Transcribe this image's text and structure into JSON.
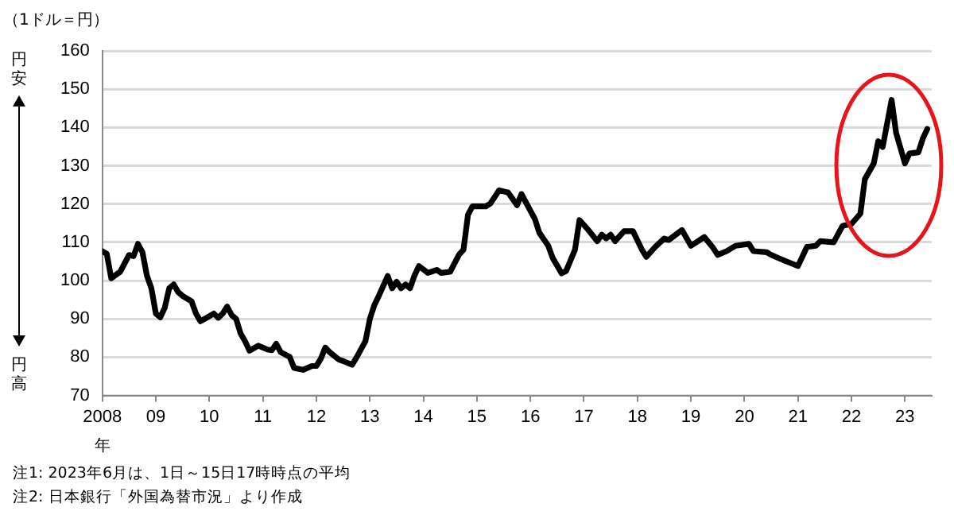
{
  "chart_data": {
    "type": "line",
    "ylabel": "（1ドル＝円）",
    "xlabel": "年",
    "annotations": [
      "円安",
      "円高",
      "注1: 2023年6月は、1日～15日17時時点の平均",
      "注2: 日本銀行「外国為替市況」より作成"
    ],
    "x": [
      "2008-01",
      "2008-02",
      "2008-03",
      "2008-05",
      "2008-07",
      "2008-08",
      "2008-09",
      "2008-10",
      "2008-11",
      "2008-12",
      "2009-01",
      "2009-02",
      "2009-03",
      "2009-04",
      "2009-05",
      "2009-06",
      "2009-07",
      "2009-09",
      "2009-10",
      "2009-11",
      "2010-01",
      "2010-02",
      "2010-03",
      "2010-04",
      "2010-05",
      "2010-06",
      "2010-07",
      "2010-08",
      "2010-09",
      "2010-10",
      "2010-12",
      "2011-02",
      "2011-03",
      "2011-04",
      "2011-05",
      "2011-07",
      "2011-08",
      "2011-10",
      "2011-12",
      "2012-01",
      "2012-02",
      "2012-03",
      "2012-04",
      "2012-06",
      "2012-07",
      "2012-09",
      "2012-10",
      "2012-12",
      "2013-01",
      "2013-02",
      "2013-03",
      "2013-05",
      "2013-06",
      "2013-07",
      "2013-08",
      "2013-09",
      "2013-10",
      "2013-11",
      "2013-12",
      "2014-02",
      "2014-04",
      "2014-05",
      "2014-07",
      "2014-09",
      "2014-10",
      "2014-11",
      "2014-12",
      "2015-03",
      "2015-04",
      "2015-06",
      "2015-08",
      "2015-10",
      "2015-11",
      "2015-12",
      "2016-02",
      "2016-03",
      "2016-05",
      "2016-06",
      "2016-08",
      "2016-09",
      "2016-11",
      "2016-12",
      "2017-02",
      "2017-04",
      "2017-05",
      "2017-06",
      "2017-07",
      "2017-08",
      "2017-10",
      "2017-12",
      "2018-02",
      "2018-03",
      "2018-05",
      "2018-07",
      "2018-08",
      "2018-11",
      "2019-01",
      "2019-04",
      "2019-06",
      "2019-07",
      "2019-09",
      "2019-11",
      "2020-02",
      "2020-03",
      "2020-06",
      "2020-07",
      "2020-10",
      "2021-01",
      "2021-03",
      "2021-05",
      "2021-06",
      "2021-09",
      "2021-11",
      "2022-01",
      "2022-03",
      "2022-04",
      "2022-06",
      "2022-07",
      "2022-08",
      "2022-10",
      "2022-11",
      "2023-01",
      "2023-02",
      "2023-04",
      "2023-05",
      "2023-06"
    ],
    "series": [
      {
        "color": "#000000",
        "values": [
          107.7,
          107,
          100.6,
          102.3,
          106.7,
          106.4,
          109.6,
          107.4,
          101.3,
          98,
          91.4,
          90.4,
          92.9,
          98,
          99,
          97,
          96,
          94.6,
          91.4,
          89.4,
          90.7,
          91.4,
          90.3,
          91.4,
          93.2,
          91,
          90,
          86.2,
          84.2,
          81.7,
          83,
          82,
          81.8,
          83.5,
          81.3,
          80.1,
          77.2,
          76.7,
          77.7,
          77.7,
          79.6,
          82.5,
          81.3,
          79.4,
          79,
          78,
          79.9,
          84.2,
          90,
          93.6,
          96,
          101.2,
          98,
          99.7,
          98,
          99,
          98,
          101.3,
          103.8,
          102,
          102.8,
          102,
          102.3,
          106.8,
          108.1,
          117.2,
          119.4,
          119.4,
          120.1,
          123.6,
          123,
          119.7,
          122.6,
          120.4,
          116.1,
          112.5,
          109.1,
          105.9,
          101.9,
          102.5,
          108.1,
          115.8,
          113.2,
          110.3,
          112,
          111,
          112,
          110.3,
          112.9,
          112.9,
          108.1,
          106.2,
          108.8,
          111,
          110.6,
          113.2,
          109.1,
          111.4,
          108.5,
          106.7,
          107.7,
          109.1,
          109.6,
          107.7,
          107.4,
          106.7,
          105.2,
          103.8,
          108.8,
          109.1,
          110.3,
          110,
          114.3,
          114.8,
          117.5,
          126.5,
          130.6,
          136.4,
          134.9,
          147.2,
          138.6,
          130.6,
          133.2,
          133.5,
          137.1,
          139.6
        ]
      }
    ],
    "xlim": [
      "2008-01",
      "2023-07"
    ],
    "xticks": [
      {
        "value": "2008",
        "label": "2008"
      },
      {
        "value": "2009",
        "label": "09"
      },
      {
        "value": "2010",
        "label": "10"
      },
      {
        "value": "2011",
        "label": "11"
      },
      {
        "value": "2012",
        "label": "12"
      },
      {
        "value": "2013",
        "label": "13"
      },
      {
        "value": "2014",
        "label": "14"
      },
      {
        "value": "2015",
        "label": "15"
      },
      {
        "value": "2016",
        "label": "16"
      },
      {
        "value": "2017",
        "label": "17"
      },
      {
        "value": "2018",
        "label": "18"
      },
      {
        "value": "2019",
        "label": "19"
      },
      {
        "value": "2020",
        "label": "20"
      },
      {
        "value": "2021",
        "label": "21"
      },
      {
        "value": "2022",
        "label": "22"
      },
      {
        "value": "2023",
        "label": "23"
      }
    ],
    "ylim": [
      70,
      160
    ],
    "yticks": [
      70,
      80,
      90,
      100,
      110,
      120,
      130,
      140,
      150,
      160
    ],
    "grid": "y",
    "legend": false,
    "marker": "none",
    "line_style": "solid"
  }
}
